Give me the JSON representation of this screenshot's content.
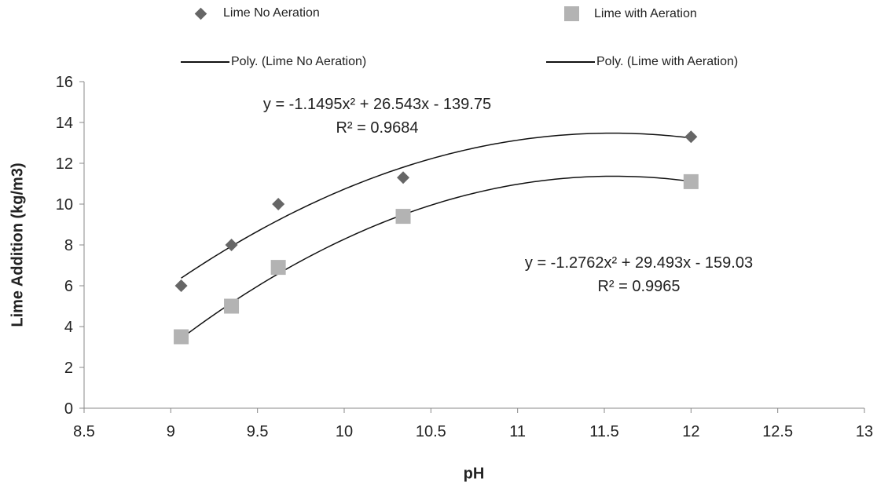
{
  "chart_data": {
    "type": "scatter",
    "title": "",
    "xlabel": "pH",
    "ylabel": "Lime Addition (kg/m3)",
    "xlim": [
      8.5,
      13
    ],
    "ylim": [
      0,
      16
    ],
    "x_ticks": [
      "8.5",
      "9",
      "9.5",
      "10",
      "10.5",
      "11",
      "11.5",
      "12",
      "12.5",
      "13"
    ],
    "y_ticks": [
      "0",
      "2",
      "4",
      "6",
      "8",
      "10",
      "12",
      "14",
      "16"
    ],
    "grid": false,
    "legend_position": "top",
    "series": [
      {
        "name": "Lime No Aeration",
        "marker": "diamond",
        "color": "#666666",
        "x": [
          9.06,
          9.35,
          9.62,
          10.34,
          12.0
        ],
        "y": [
          6.0,
          8.0,
          10.0,
          11.3,
          13.3
        ]
      },
      {
        "name": "Lime with Aeration",
        "marker": "square",
        "color": "#b3b3b3",
        "x": [
          9.06,
          9.35,
          9.62,
          10.34,
          12.0
        ],
        "y": [
          3.5,
          5.0,
          6.9,
          9.4,
          11.1
        ]
      }
    ],
    "trendlines": [
      {
        "name": "Poly. (Lime No Aeration)",
        "coefficients": [
          -1.1495,
          26.543,
          -139.75
        ],
        "x_range": [
          9.06,
          12.0
        ],
        "color": "#111111",
        "equation_text": "y = -1.1495x² + 26.543x - 139.75",
        "r2_text": "R² = 0.9684"
      },
      {
        "name": "Poly. (Lime with Aeration)",
        "coefficients": [
          -1.2762,
          29.493,
          -159.03
        ],
        "x_range": [
          9.06,
          12.0
        ],
        "color": "#111111",
        "equation_text": "y = -1.2762x² + 29.493x - 159.03",
        "r2_text": "R² = 0.9965"
      }
    ]
  }
}
